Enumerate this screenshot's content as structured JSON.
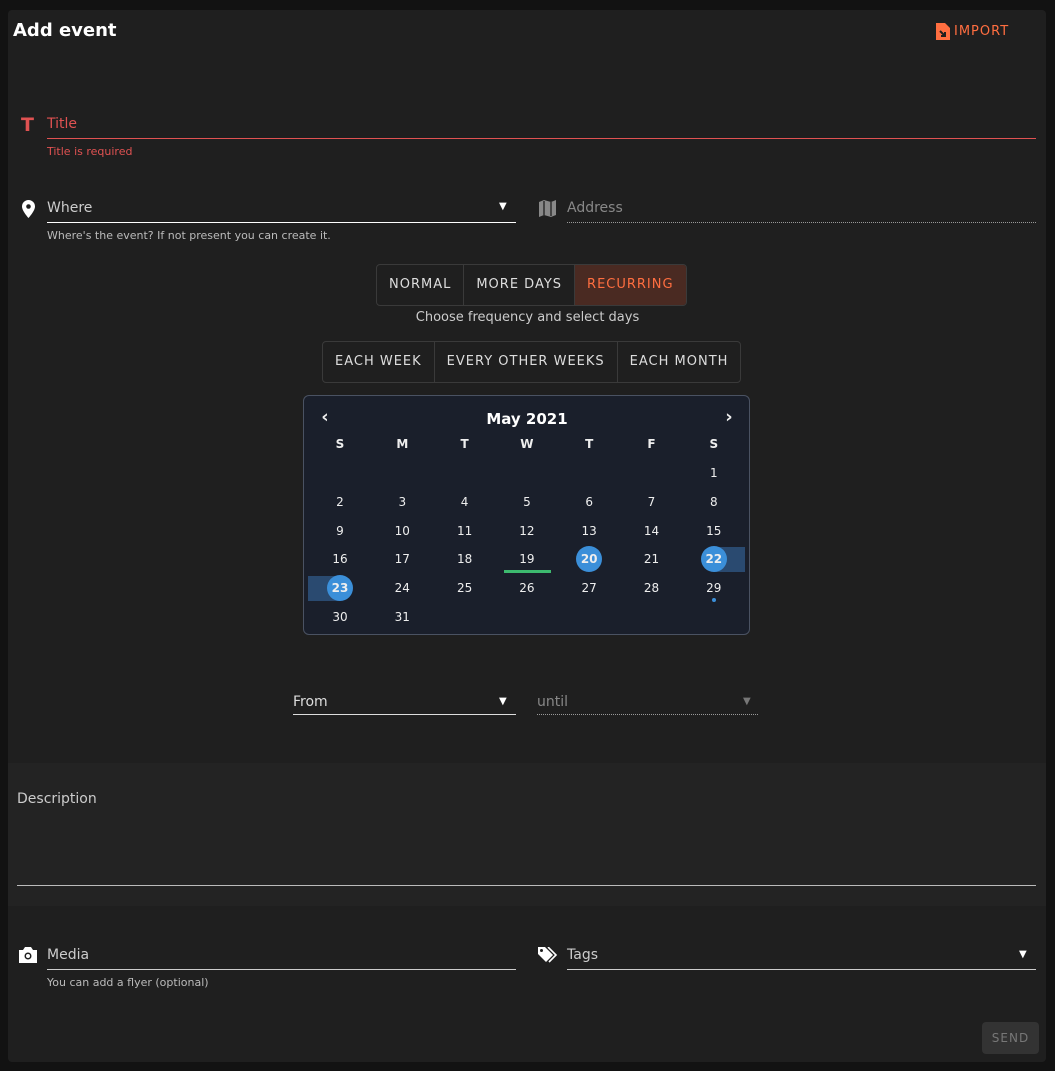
{
  "header": {
    "title": "Add event",
    "import_label": "IMPORT"
  },
  "title_field": {
    "label": "Title",
    "error": "Title is required"
  },
  "where_field": {
    "label": "Where",
    "hint": "Where's the event? If not present you can create it."
  },
  "address_field": {
    "label": "Address"
  },
  "mode_tabs": [
    {
      "label": "NORMAL",
      "active": false
    },
    {
      "label": "MORE DAYS",
      "active": false
    },
    {
      "label": "RECURRING",
      "active": true
    }
  ],
  "mode_hint": "Choose frequency and select days",
  "frequency_tabs": [
    {
      "label": "EACH WEEK"
    },
    {
      "label": "EVERY OTHER WEEKS"
    },
    {
      "label": "EACH MONTH"
    }
  ],
  "calendar": {
    "month": "May 2021",
    "weekdays": [
      "S",
      "M",
      "T",
      "W",
      "T",
      "F",
      "S"
    ],
    "first_weekday": 6,
    "days_in_month": 31,
    "today": 19,
    "selected": [
      20,
      22,
      23
    ],
    "range_edges": [
      22,
      23
    ],
    "dot_days": [
      29
    ],
    "colors": {
      "selected": "#3b8fd9",
      "today": "#3dba6f",
      "range": "#2a4a70"
    }
  },
  "time": {
    "from_label": "From",
    "until_label": "until"
  },
  "description": {
    "label": "Description"
  },
  "media": {
    "label": "Media",
    "hint": "You can add a flyer (optional)"
  },
  "tags": {
    "label": "Tags"
  },
  "send_label": "SEND",
  "colors": {
    "accent": "#ff6e40",
    "error": "#e05252"
  }
}
